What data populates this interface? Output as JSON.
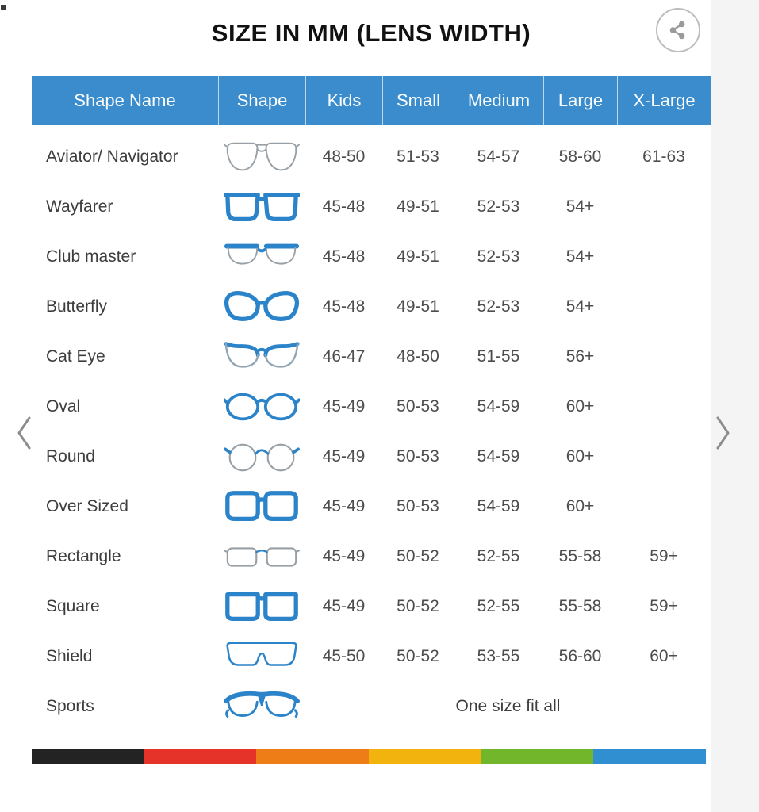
{
  "page": {
    "title": "SIZE IN MM (LENS WIDTH)"
  },
  "toolbar": {
    "share_icon": "share"
  },
  "nav": {
    "prev_icon": "chevron-left",
    "next_icon": "chevron-right"
  },
  "table": {
    "columns": [
      "Shape Name",
      "Shape",
      "Kids",
      "Small",
      "Medium",
      "Large",
      "X-Large"
    ],
    "rows": [
      {
        "name": "Aviator/ Navigator",
        "icon": "aviator",
        "kids": "48-50",
        "small": "51-53",
        "medium": "54-57",
        "large": "58-60",
        "xlarge": "61-63"
      },
      {
        "name": "Wayfarer",
        "icon": "wayfarer",
        "kids": "45-48",
        "small": "49-51",
        "medium": "52-53",
        "large": "54+",
        "xlarge": ""
      },
      {
        "name": "Club master",
        "icon": "clubmaster",
        "kids": "45-48",
        "small": "49-51",
        "medium": "52-53",
        "large": "54+",
        "xlarge": ""
      },
      {
        "name": "Butterfly",
        "icon": "butterfly",
        "kids": "45-48",
        "small": "49-51",
        "medium": "52-53",
        "large": "54+",
        "xlarge": ""
      },
      {
        "name": "Cat Eye",
        "icon": "cateye",
        "kids": "46-47",
        "small": "48-50",
        "medium": "51-55",
        "large": "56+",
        "xlarge": ""
      },
      {
        "name": "Oval",
        "icon": "oval",
        "kids": "45-49",
        "small": "50-53",
        "medium": "54-59",
        "large": "60+",
        "xlarge": ""
      },
      {
        "name": "Round",
        "icon": "round",
        "kids": "45-49",
        "small": "50-53",
        "medium": "54-59",
        "large": "60+",
        "xlarge": ""
      },
      {
        "name": "Over Sized",
        "icon": "oversized",
        "kids": "45-49",
        "small": "50-53",
        "medium": "54-59",
        "large": "60+",
        "xlarge": ""
      },
      {
        "name": "Rectangle",
        "icon": "rectangle",
        "kids": "45-49",
        "small": "50-52",
        "medium": "52-55",
        "large": "55-58",
        "xlarge": "59+"
      },
      {
        "name": "Square",
        "icon": "square",
        "kids": "45-49",
        "small": "50-52",
        "medium": "52-55",
        "large": "55-58",
        "xlarge": "59+"
      },
      {
        "name": "Shield",
        "icon": "shield",
        "kids": "45-50",
        "small": "50-52",
        "medium": "53-55",
        "large": "56-60",
        "xlarge": "60+"
      },
      {
        "name": "Sports",
        "icon": "sports",
        "span": "One size fit all"
      }
    ]
  },
  "colors": {
    "header_bg": "#3b8ccd",
    "frame_blue": "#2b84c9",
    "frame_gray": "#98a0a6"
  },
  "footer_stripe": {
    "colors": [
      "#232323",
      "#e5332a",
      "#ee7d18",
      "#f2b30e",
      "#72b62c",
      "#2f8fd0"
    ]
  }
}
